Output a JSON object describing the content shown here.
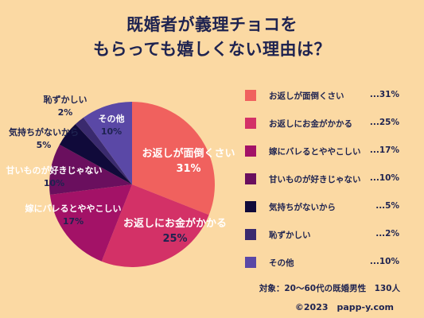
{
  "title": {
    "line1": "既婚者が義理チョコを",
    "line2": "もらっても嬉しくない理由は？"
  },
  "chart_data": {
    "type": "pie",
    "title": "既婚者が義理チョコをもらっても嬉しくない理由は？",
    "slices": [
      {
        "label": "お返しが面倒くさい",
        "value": 31,
        "value_label": "31%",
        "legend_value": "...31%",
        "color": "#f0615e"
      },
      {
        "label": "お返しにお金がかかる",
        "value": 25,
        "value_label": "25%",
        "legend_value": "...25%",
        "color": "#d33167"
      },
      {
        "label": "嫁にバレるとややこしい",
        "value": 17,
        "value_label": "17%",
        "legend_value": "...17%",
        "color": "#a31267"
      },
      {
        "label": "甘いものが好きじゃない",
        "value": 10,
        "value_label": "10%",
        "legend_value": "...10%",
        "color": "#6a0f5e"
      },
      {
        "label": "気持ちがないから",
        "value": 5,
        "value_label": "5%",
        "legend_value": "...5%",
        "color": "#100a3a"
      },
      {
        "label": "恥ずかしい",
        "value": 2,
        "value_label": "2%",
        "legend_value": "...2%",
        "color": "#3a2a6e"
      },
      {
        "label": "その他",
        "value": 10,
        "value_label": "10%",
        "legend_value": "...10%",
        "color": "#5a48a6"
      }
    ],
    "legend_position": "right"
  },
  "footer": {
    "note": "対象：20〜60代の既婚男性　130人",
    "copyright": "©2023　papp-y.com"
  }
}
